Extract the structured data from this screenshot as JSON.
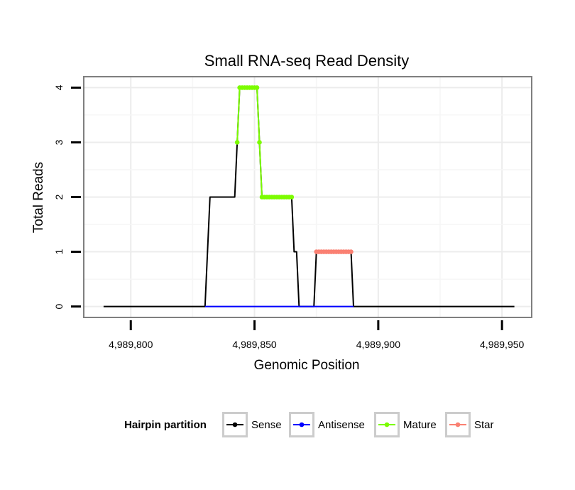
{
  "chart_data": {
    "type": "line",
    "title": "Small RNA-seq Read Density",
    "xlabel": "Genomic Position",
    "ylabel": "Total Reads",
    "xlim": [
      4989781,
      4989962
    ],
    "ylim": [
      -0.2,
      4.2
    ],
    "xticks": [
      4989800,
      4989850,
      4989900,
      4989950
    ],
    "xtick_labels": [
      "4,989,800",
      "4,989,850",
      "4,989,900",
      "4,989,950"
    ],
    "yticks": [
      0,
      1,
      2,
      3,
      4
    ],
    "ytick_labels": [
      "0",
      "1",
      "2",
      "3",
      "4"
    ],
    "grid": true,
    "legend": {
      "title": "Hairpin partition",
      "position": "bottom",
      "entries": [
        {
          "name": "Sense",
          "color": "#000000"
        },
        {
          "name": "Antisense",
          "color": "#0000ff"
        },
        {
          "name": "Mature",
          "color": "#7cfc00"
        },
        {
          "name": "Star",
          "color": "#fa8072"
        }
      ]
    },
    "series": [
      {
        "name": "Sense",
        "color": "#000000",
        "markers": false,
        "points": [
          [
            4989789,
            0
          ],
          [
            4989830,
            0
          ],
          [
            4989832,
            2
          ],
          [
            4989842,
            2
          ],
          [
            4989843,
            3
          ],
          [
            4989844,
            4
          ],
          [
            4989851,
            4
          ],
          [
            4989852,
            3
          ],
          [
            4989853,
            2
          ],
          [
            4989865,
            2
          ],
          [
            4989866,
            1
          ],
          [
            4989867,
            1
          ],
          [
            4989868,
            0
          ],
          [
            4989874,
            0
          ],
          [
            4989875,
            1
          ],
          [
            4989889,
            1
          ],
          [
            4989890,
            0
          ],
          [
            4989955,
            0
          ]
        ]
      },
      {
        "name": "Antisense",
        "color": "#0000ff",
        "markers": false,
        "points": [
          [
            4989830,
            0
          ],
          [
            4989890,
            0
          ]
        ]
      },
      {
        "name": "Mature",
        "color": "#7cfc00",
        "markers": true,
        "points": [
          [
            4989843,
            3
          ],
          [
            4989844,
            4
          ],
          [
            4989845,
            4
          ],
          [
            4989846,
            4
          ],
          [
            4989847,
            4
          ],
          [
            4989848,
            4
          ],
          [
            4989849,
            4
          ],
          [
            4989850,
            4
          ],
          [
            4989851,
            4
          ],
          [
            4989852,
            3
          ],
          [
            4989853,
            2
          ],
          [
            4989854,
            2
          ],
          [
            4989855,
            2
          ],
          [
            4989856,
            2
          ],
          [
            4989857,
            2
          ],
          [
            4989858,
            2
          ],
          [
            4989859,
            2
          ],
          [
            4989860,
            2
          ],
          [
            4989861,
            2
          ],
          [
            4989862,
            2
          ],
          [
            4989863,
            2
          ],
          [
            4989864,
            2
          ],
          [
            4989865,
            2
          ]
        ]
      },
      {
        "name": "Star",
        "color": "#fa8072",
        "markers": true,
        "points": [
          [
            4989875,
            1
          ],
          [
            4989876,
            1
          ],
          [
            4989877,
            1
          ],
          [
            4989878,
            1
          ],
          [
            4989879,
            1
          ],
          [
            4989880,
            1
          ],
          [
            4989881,
            1
          ],
          [
            4989882,
            1
          ],
          [
            4989883,
            1
          ],
          [
            4989884,
            1
          ],
          [
            4989885,
            1
          ],
          [
            4989886,
            1
          ],
          [
            4989887,
            1
          ],
          [
            4989888,
            1
          ],
          [
            4989889,
            1
          ]
        ]
      }
    ]
  }
}
